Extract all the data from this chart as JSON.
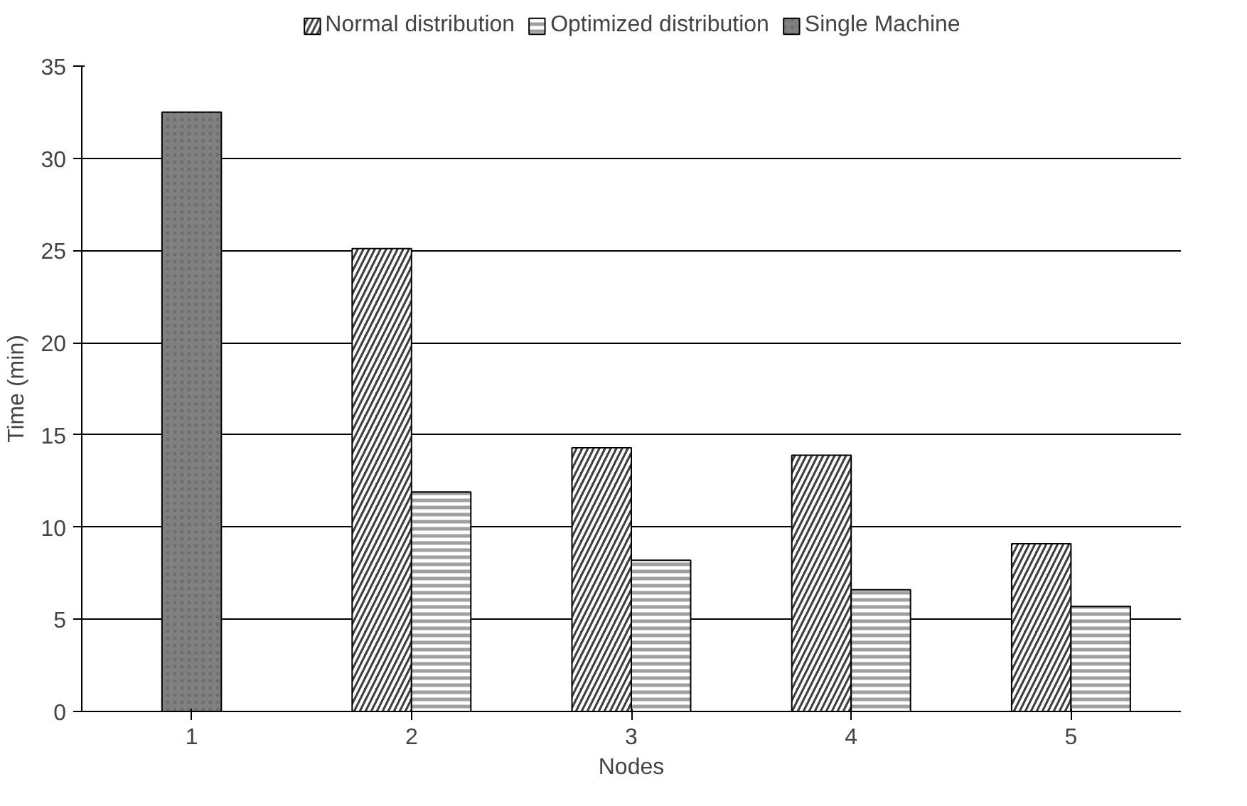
{
  "chart_data": {
    "type": "bar",
    "xlabel": "Nodes",
    "ylabel": "Time (min)",
    "categories": [
      "1",
      "2",
      "3",
      "4",
      "5"
    ],
    "series": [
      {
        "name": "Normal distribution",
        "color": "#404040",
        "values": [
          null,
          25.1,
          14.3,
          13.9,
          9.1
        ]
      },
      {
        "name": "Optimized distribution",
        "color": "#a0a0a0",
        "values": [
          null,
          11.9,
          8.2,
          6.6,
          5.7
        ]
      },
      {
        "name": "Single Machine",
        "color": "#808080",
        "values": [
          32.5,
          null,
          null,
          null,
          null
        ]
      }
    ],
    "ylim": [
      0,
      35
    ],
    "yticks": [
      0,
      5,
      10,
      15,
      20,
      25,
      30,
      35
    ],
    "grid": "y",
    "legend": "top"
  }
}
